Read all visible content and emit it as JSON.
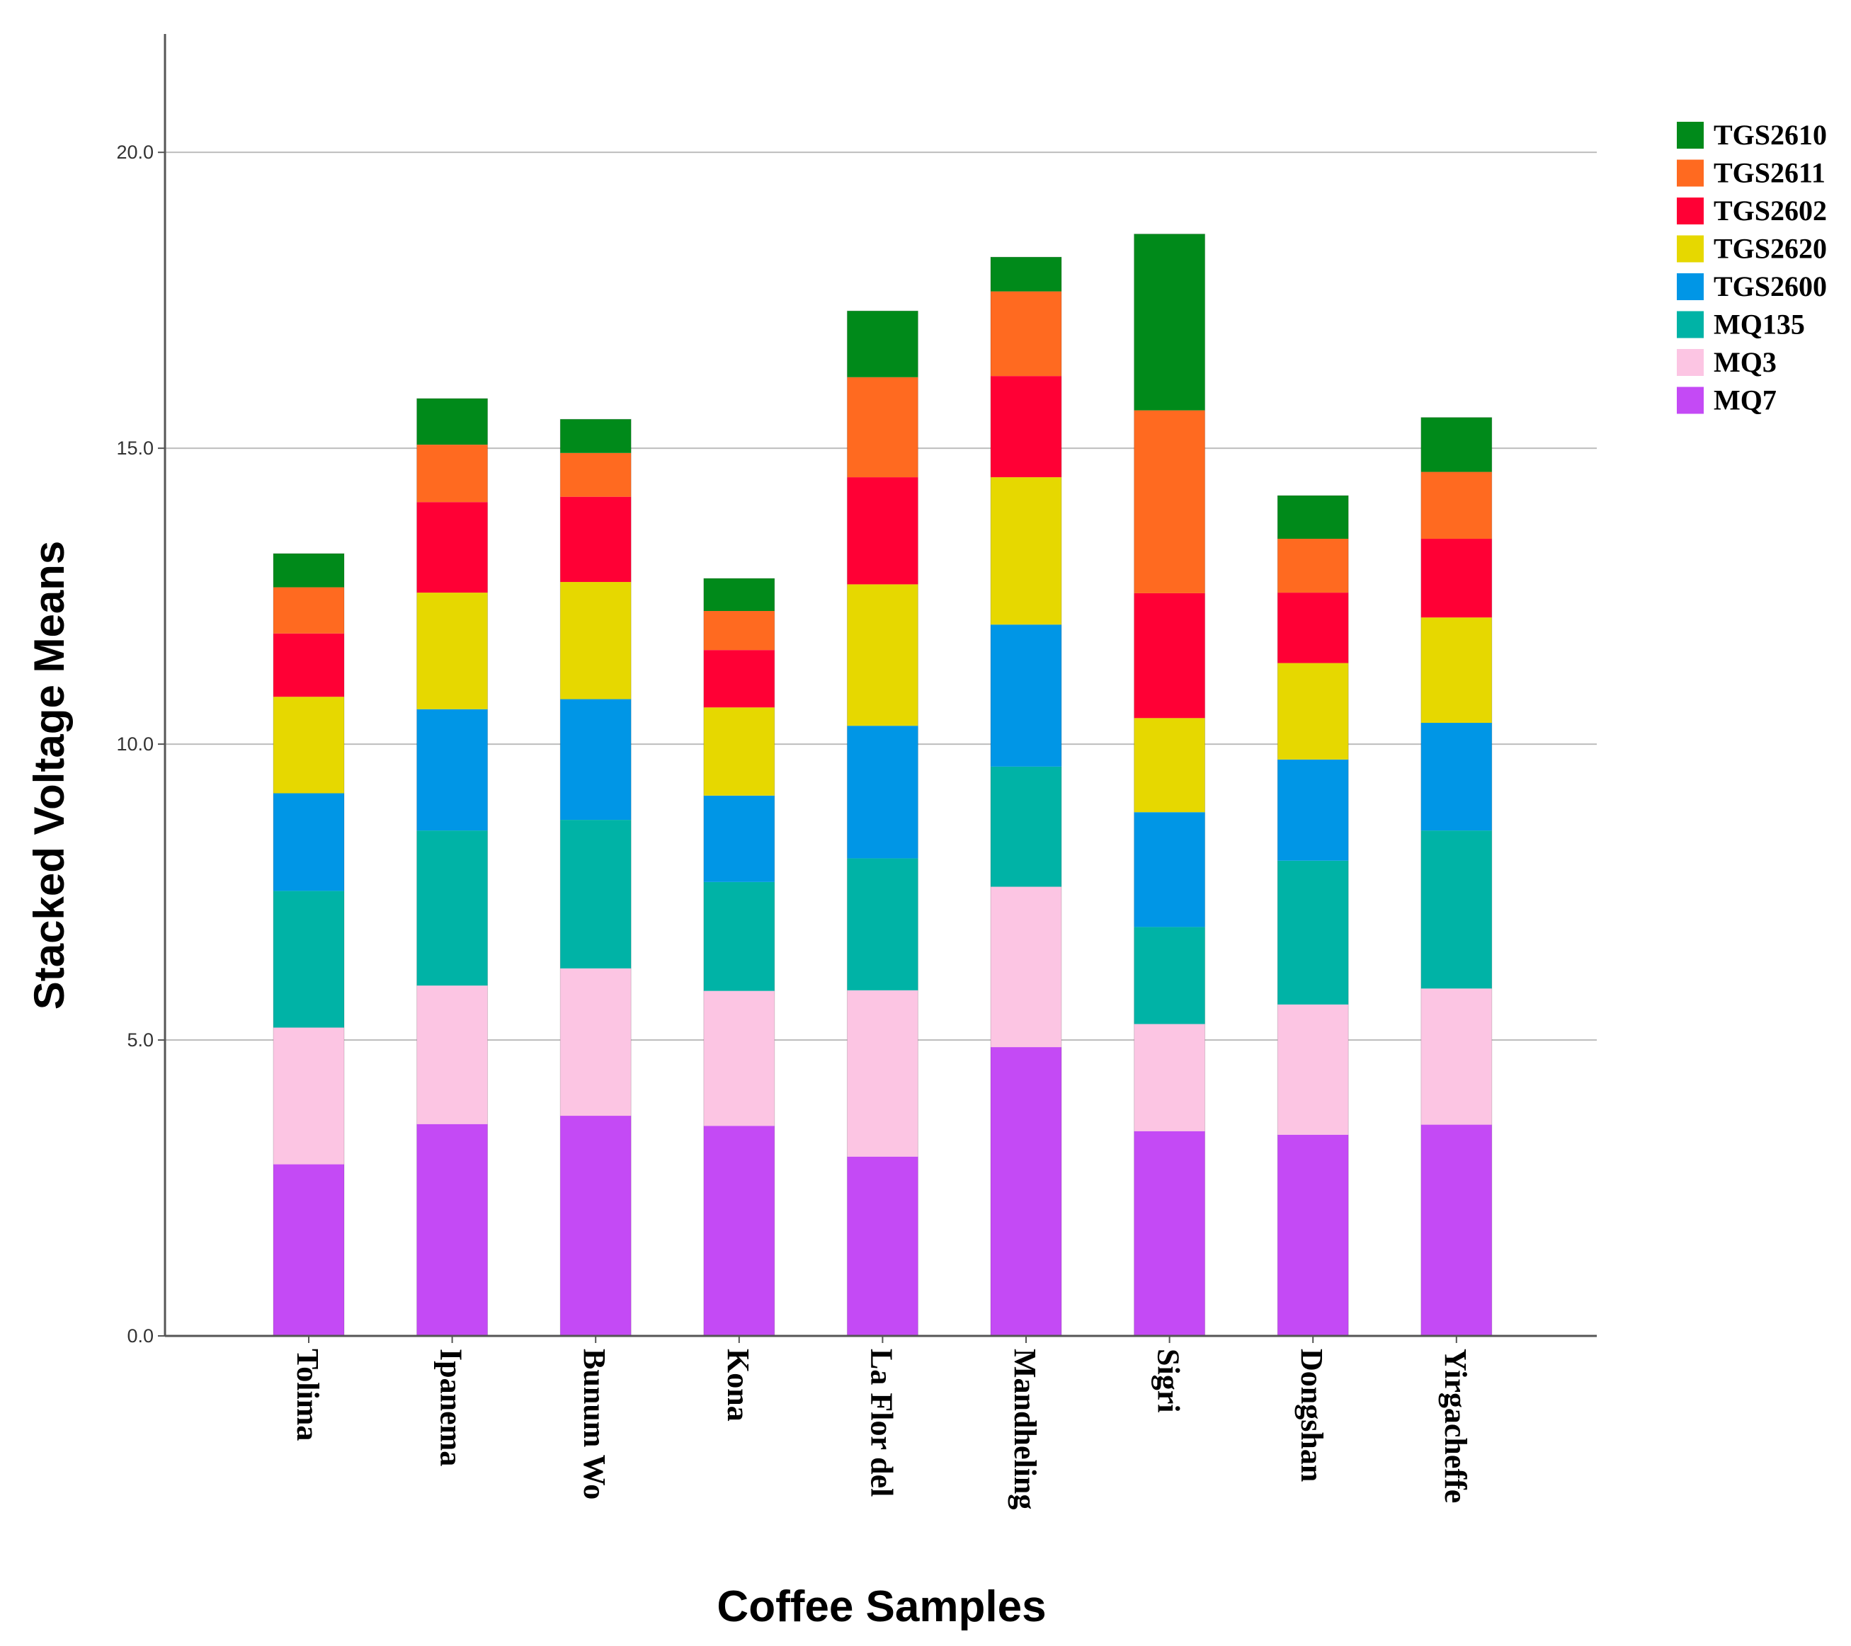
{
  "chart_data": {
    "type": "bar",
    "stacked": true,
    "title": "",
    "xlabel": "Coffee Samples",
    "ylabel": "Stacked Voltage Means",
    "ylim": [
      0,
      22
    ],
    "yticks": [
      0,
      5,
      10,
      15,
      20
    ],
    "ytick_labels": [
      "0.0",
      "5.0",
      "10.0",
      "15.0",
      "20.0"
    ],
    "grid": true,
    "legend_position": "top-right",
    "categories": [
      "Tolima",
      "Ipanema",
      "Bunum Wo",
      "Kona",
      "La Flor del",
      "Mandheling",
      "Sigri",
      "Dongshan",
      "Yirgacheffe"
    ],
    "series": [
      {
        "name": "MQ7",
        "color": "#C44AF5",
        "values": [
          2.9,
          3.58,
          3.72,
          3.55,
          3.03,
          4.88,
          3.46,
          3.4,
          3.57
        ]
      },
      {
        "name": "MQ3",
        "color": "#FCC5E3",
        "values": [
          2.31,
          2.34,
          2.49,
          2.28,
          2.81,
          2.71,
          1.81,
          2.2,
          2.3
        ]
      },
      {
        "name": "MQ135",
        "color": "#00B3A6",
        "values": [
          2.31,
          2.62,
          2.51,
          1.84,
          2.23,
          2.03,
          1.64,
          2.43,
          2.67
        ]
      },
      {
        "name": "TGS2600",
        "color": "#0096E6",
        "values": [
          1.65,
          2.05,
          2.04,
          1.46,
          2.24,
          2.4,
          1.94,
          1.71,
          1.82
        ]
      },
      {
        "name": "TGS2620",
        "color": "#E6D800",
        "values": [
          1.63,
          1.97,
          1.98,
          1.49,
          2.39,
          2.49,
          1.59,
          1.63,
          1.78
        ]
      },
      {
        "name": "TGS2602",
        "color": "#FF0035",
        "values": [
          1.07,
          1.53,
          1.44,
          0.97,
          1.81,
          1.71,
          2.11,
          1.19,
          1.33
        ]
      },
      {
        "name": "TGS2611",
        "color": "#FF6A20",
        "values": [
          0.78,
          0.97,
          0.74,
          0.66,
          1.69,
          1.43,
          3.09,
          0.91,
          1.13
        ]
      },
      {
        "name": "TGS2610",
        "color": "#008A1A",
        "values": [
          0.57,
          0.78,
          0.57,
          0.55,
          1.12,
          0.58,
          2.98,
          0.73,
          0.92
        ]
      }
    ]
  }
}
